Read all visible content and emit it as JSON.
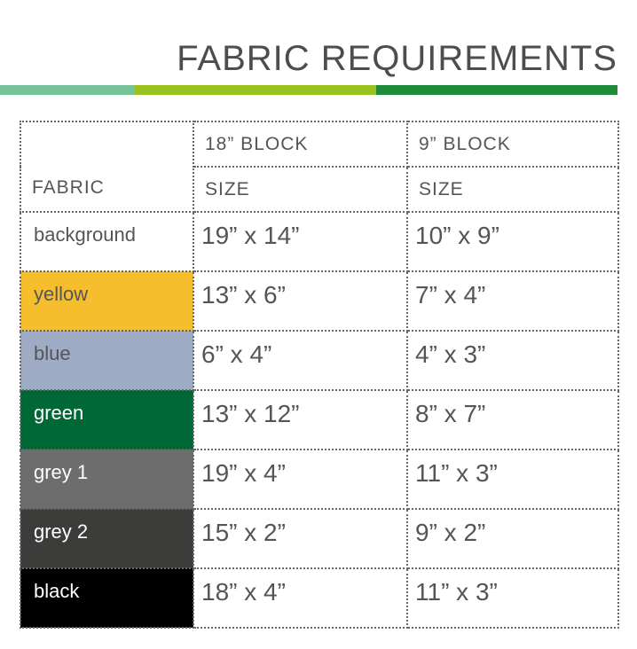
{
  "title": "FABRIC REQUIREMENTS",
  "accent_bars": [
    "#78c29a",
    "#99c21f",
    "#1e8a3a"
  ],
  "table": {
    "headers": {
      "fabric": "FABRIC",
      "col1_top": "18” BLOCK",
      "col1_bottom": "SIZE",
      "col2_top": "9” BLOCK",
      "col2_bottom": "SIZE"
    },
    "rows": [
      {
        "fabric": "background",
        "color": "#ffffff",
        "text_color": "#555555",
        "block18": "19” x 14”",
        "block9": "10” x 9”"
      },
      {
        "fabric": "yellow",
        "color": "#f6be2c",
        "text_color": "#555555",
        "block18": "13” x 6”",
        "block9": "7” x 4”"
      },
      {
        "fabric": "blue",
        "color": "#9eabc4",
        "text_color": "#555555",
        "block18": "6” x 4”",
        "block9": "4” x 3”"
      },
      {
        "fabric": "green",
        "color": "#006837",
        "text_color": "#ffffff",
        "block18": "13” x 12”",
        "block9": "8” x 7”"
      },
      {
        "fabric": "grey 1",
        "color": "#6d6d6d",
        "text_color": "#ffffff",
        "block18": "19” x 4”",
        "block9": "11” x 3”"
      },
      {
        "fabric": "grey 2",
        "color": "#3c3c3b",
        "text_color": "#ffffff",
        "block18": "15” x 2”",
        "block9": "9” x 2”"
      },
      {
        "fabric": "black",
        "color": "#000000",
        "text_color": "#ffffff",
        "block18": "18” x 4”",
        "block9": "11” x 3”"
      }
    ]
  }
}
